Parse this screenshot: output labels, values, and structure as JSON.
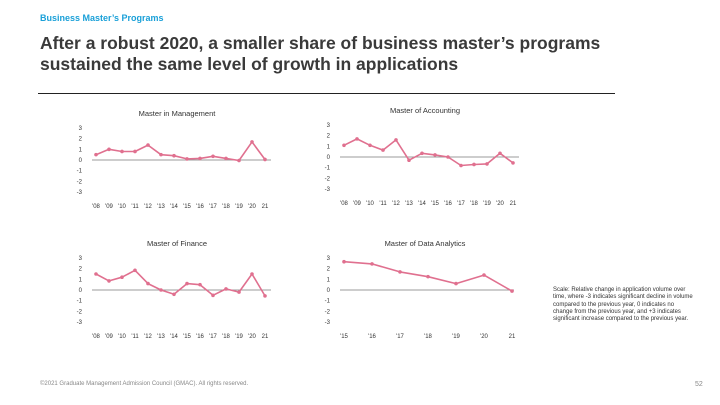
{
  "header": {
    "kicker": "Business Master’s Programs",
    "title": "After a robust 2020, a smaller share of business master’s programs sustained the same level of growth in applications"
  },
  "colors": {
    "series": "#e0708f",
    "kicker": "#1aa0d8",
    "zero_line": "#7a7a7a"
  },
  "chart_data": [
    {
      "type": "line",
      "title": "Master in Management",
      "categories": [
        "'08",
        "'09",
        "'10",
        "'11",
        "'12",
        "'13",
        "'14",
        "'15",
        "'16",
        "'17",
        "'18",
        "'19",
        "'20",
        "21"
      ],
      "values": [
        0.5,
        1.0,
        0.8,
        0.8,
        1.4,
        0.5,
        0.4,
        0.1,
        0.15,
        0.35,
        0.15,
        -0.05,
        1.7,
        0.05
      ],
      "ylim": [
        -3,
        3
      ],
      "yticks": [
        "3",
        "2",
        "1",
        "0",
        "-1",
        "-2",
        "-3"
      ]
    },
    {
      "type": "line",
      "title": "Master of Accounting",
      "categories": [
        "'08",
        "'09",
        "'10",
        "'11",
        "'12",
        "'13",
        "'14",
        "'15",
        "'16",
        "'17",
        "'18",
        "'19",
        "'20",
        "21"
      ],
      "values": [
        1.1,
        1.7,
        1.1,
        0.65,
        1.6,
        -0.3,
        0.35,
        0.2,
        0.0,
        -0.8,
        -0.7,
        -0.65,
        0.35,
        -0.55
      ],
      "ylim": [
        -3,
        3
      ],
      "yticks": [
        "3",
        "2",
        "1",
        "0",
        "-1",
        "-2",
        "-3"
      ]
    },
    {
      "type": "line",
      "title": "Master of Finance",
      "categories": [
        "'08",
        "'09",
        "'10",
        "'11",
        "'12",
        "'13",
        "'14",
        "'15",
        "'16",
        "'17",
        "'18",
        "'19",
        "'20",
        "21"
      ],
      "values": [
        1.5,
        0.85,
        1.2,
        1.85,
        0.6,
        0.0,
        -0.4,
        0.6,
        0.5,
        -0.5,
        0.1,
        -0.2,
        1.5,
        -0.55
      ],
      "ylim": [
        -3,
        3
      ],
      "yticks": [
        "3",
        "2",
        "1",
        "0",
        "-1",
        "-2",
        "-3"
      ]
    },
    {
      "type": "line",
      "title": "Master of Data Analytics",
      "categories": [
        "'15",
        "'16",
        "'17",
        "'18",
        "'19",
        "'20",
        "21"
      ],
      "values": [
        2.65,
        2.45,
        1.7,
        1.25,
        0.6,
        1.4,
        -0.1
      ],
      "ylim": [
        -3,
        3
      ],
      "yticks": [
        "3",
        "2",
        "1",
        "0",
        "-1",
        "-2",
        "-3"
      ]
    }
  ],
  "note": {
    "scale_text": "Scale: Relative change in application volume over time, where -3 indicates significant decline in volume compared to the previous year, 0 indicates no change from the previous year, and +3 indicates significant increase compared to the previous year."
  },
  "footer": {
    "copyright": "©2021 Graduate Management Admission Council (GMAC). All rights reserved.",
    "page_number": "52"
  }
}
